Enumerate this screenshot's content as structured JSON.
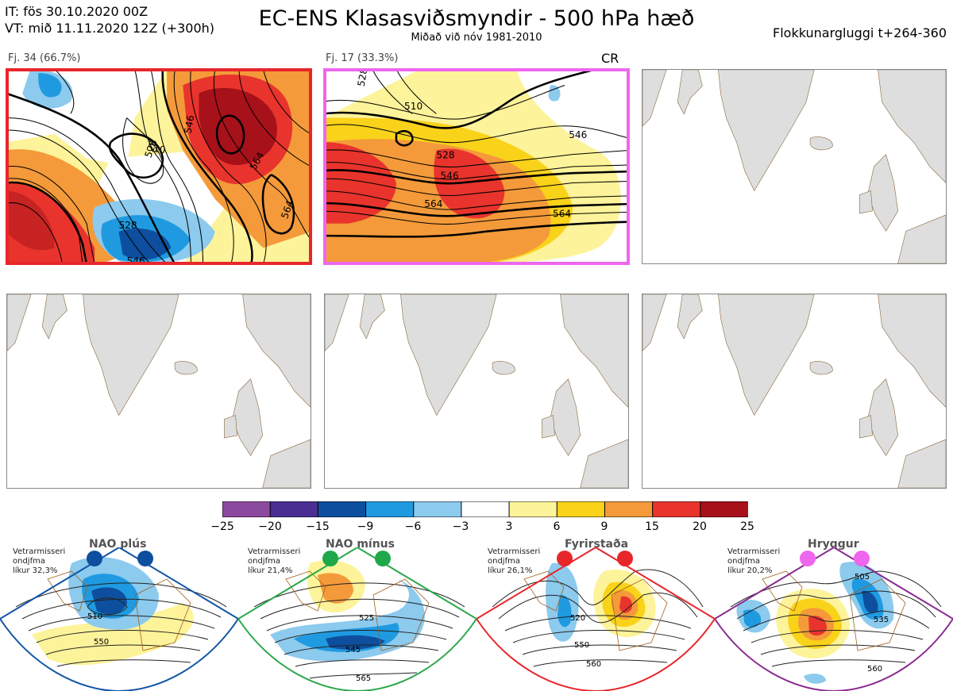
{
  "header": {
    "init_time": "IT: fös 30.10.2020 00Z",
    "valid_time": "VT: mið 11.11.2020 12Z  (+300h)",
    "title": "EC-ENS Klasasviðsmyndir - 500 hPa hæð",
    "subtitle": "Miðað við nóv 1981-2010",
    "window": "Flokkunargluggi t+264-360"
  },
  "panels": [
    {
      "label": "Fj. 34 (66.7%)",
      "border_color": "#e8262a",
      "contours": [
        "528",
        "510",
        "546",
        "564",
        "528",
        "546",
        "564"
      ]
    },
    {
      "label": "Fj. 17 (33.3%)",
      "tag": "CR",
      "border_color": "#ee66ee",
      "contours": [
        "528",
        "510",
        "528",
        "546",
        "546",
        "564",
        "564"
      ]
    },
    {
      "label": "",
      "border_color": "#888888",
      "contours": []
    },
    {
      "label": "",
      "border_color": "#888888",
      "contours": []
    },
    {
      "label": "",
      "border_color": "#888888",
      "contours": []
    },
    {
      "label": "",
      "border_color": "#888888",
      "contours": []
    }
  ],
  "colorbar": {
    "labels": [
      "−25",
      "−20",
      "−15",
      "−9",
      "−6",
      "−3",
      "3",
      "6",
      "9",
      "15",
      "20",
      "25"
    ],
    "colors": [
      "#8c4a9e",
      "#4a2e92",
      "#0d4f9e",
      "#1f9ae0",
      "#8ccaee",
      "#ffffff",
      "#fdf39a",
      "#f9d21a",
      "#f49a3a",
      "#e8342c",
      "#a6111a"
    ]
  },
  "regimes": [
    {
      "name": "NAO plús",
      "note_line1": "Vetrarmisseri",
      "note_line2": "ondjfma",
      "note_line3": "líkur 32,3%",
      "frame_color": "#1055a5",
      "dot_color": "#0d4f9e",
      "contours": [
        "510",
        "550"
      ]
    },
    {
      "name": "NAO mínus",
      "note_line1": "Vetrarmisseri",
      "note_line2": "ondjfma",
      "note_line3": "líkur 21,4%",
      "frame_color": "#2aa84a",
      "dot_color": "#1ea84a",
      "contours": [
        "525",
        "545",
        "565"
      ]
    },
    {
      "name": "Fyrirstaða",
      "note_line1": "Vetrarmisseri",
      "note_line2": "ondjfma",
      "note_line3": "líkur 26,1%",
      "frame_color": "#e8262a",
      "dot_color": "#e8262a",
      "contours": [
        "520",
        "550",
        "560"
      ]
    },
    {
      "name": "Hryggur",
      "note_line1": "Vetrarmisseri",
      "note_line2": "ondjfma",
      "note_line3": "líkur 20,2%",
      "frame_color": "#8a2a90",
      "dot_color": "#ee66ee",
      "contours": [
        "505",
        "535",
        "560"
      ]
    }
  ]
}
